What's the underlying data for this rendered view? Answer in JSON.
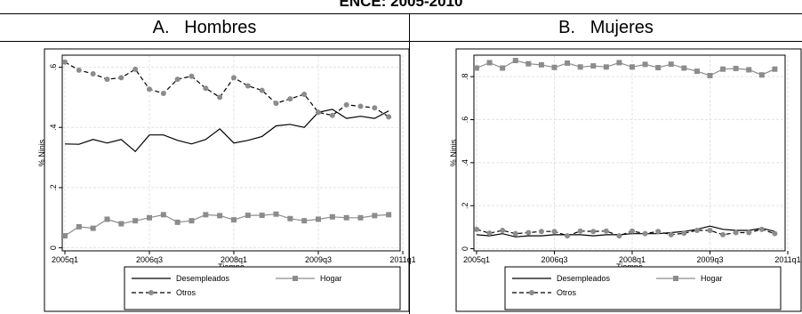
{
  "page": {
    "title": "ENCE: 2005-2010",
    "panels": [
      {
        "header_letter": "A.",
        "header_name": "Hombres"
      },
      {
        "header_letter": "B.",
        "header_name": "Mujeres"
      }
    ]
  },
  "chart_data": [
    {
      "type": "line",
      "panel": "A. Hombres",
      "xlabel": "Tiempo",
      "ylabel": "% Ninis",
      "x_ticks": [
        "2005q1",
        "2006q3",
        "2008q1",
        "2009q3",
        "2011q1"
      ],
      "y_ticks": [
        "0",
        ".2",
        ".4",
        ".6"
      ],
      "ylim": [
        -0.01,
        0.64
      ],
      "grid": true,
      "legend_position": "bottom",
      "categories": [
        "2005q1",
        "2005q2",
        "2005q3",
        "2005q4",
        "2006q1",
        "2006q2",
        "2006q3",
        "2006q4",
        "2007q1",
        "2007q2",
        "2007q3",
        "2007q4",
        "2008q1",
        "2008q2",
        "2008q3",
        "2008q4",
        "2009q1",
        "2009q2",
        "2009q3",
        "2009q4",
        "2010q1",
        "2010q2",
        "2010q3",
        "2010q4"
      ],
      "series": [
        {
          "name": "Desempleados",
          "style": "solid",
          "color": "#000000",
          "values": [
            0.345,
            0.344,
            0.36,
            0.348,
            0.36,
            0.32,
            0.375,
            0.375,
            0.357,
            0.345,
            0.36,
            0.395,
            0.348,
            0.357,
            0.37,
            0.405,
            0.41,
            0.4,
            0.45,
            0.46,
            0.43,
            0.437,
            0.43,
            0.455
          ]
        },
        {
          "name": "Hogar",
          "style": "solid",
          "color": "#8c8c8c",
          "marker": "square",
          "values": [
            0.04,
            0.07,
            0.065,
            0.095,
            0.08,
            0.09,
            0.1,
            0.11,
            0.085,
            0.09,
            0.11,
            0.107,
            0.093,
            0.108,
            0.108,
            0.112,
            0.097,
            0.09,
            0.095,
            0.103,
            0.1,
            0.1,
            0.107,
            0.11
          ]
        },
        {
          "name": "Otros",
          "style": "dashed",
          "color": "#000000",
          "marker": "circle",
          "values": [
            0.617,
            0.59,
            0.578,
            0.56,
            0.565,
            0.593,
            0.527,
            0.513,
            0.56,
            0.57,
            0.53,
            0.5,
            0.565,
            0.538,
            0.523,
            0.48,
            0.495,
            0.51,
            0.45,
            0.44,
            0.475,
            0.47,
            0.465,
            0.435
          ]
        }
      ]
    },
    {
      "type": "line",
      "panel": "B. Mujeres",
      "xlabel": "Tiempo",
      "ylabel": "% Ninis",
      "x_ticks": [
        "2005q1",
        "2006q3",
        "2008q1",
        "2009q3",
        "2011q1"
      ],
      "y_ticks": [
        "0",
        ".2",
        ".4",
        ".6",
        ".8"
      ],
      "ylim": [
        -0.01,
        0.9
      ],
      "grid": true,
      "legend_position": "bottom",
      "categories": [
        "2005q1",
        "2005q2",
        "2005q3",
        "2005q4",
        "2006q1",
        "2006q2",
        "2006q3",
        "2006q4",
        "2007q1",
        "2007q2",
        "2007q3",
        "2007q4",
        "2008q1",
        "2008q2",
        "2008q3",
        "2008q4",
        "2009q1",
        "2009q2",
        "2009q3",
        "2009q4",
        "2010q1",
        "2010q2",
        "2010q3",
        "2010q4"
      ],
      "series": [
        {
          "name": "Desempleados",
          "style": "solid",
          "color": "#000000",
          "values": [
            0.065,
            0.06,
            0.07,
            0.055,
            0.06,
            0.06,
            0.065,
            0.065,
            0.065,
            0.06,
            0.065,
            0.065,
            0.07,
            0.07,
            0.07,
            0.075,
            0.08,
            0.09,
            0.105,
            0.09,
            0.085,
            0.085,
            0.095,
            0.08
          ]
        },
        {
          "name": "Hogar",
          "style": "solid",
          "color": "#8c8c8c",
          "marker": "square",
          "values": [
            0.84,
            0.865,
            0.84,
            0.875,
            0.86,
            0.855,
            0.843,
            0.863,
            0.845,
            0.85,
            0.845,
            0.865,
            0.845,
            0.857,
            0.842,
            0.858,
            0.84,
            0.825,
            0.805,
            0.835,
            0.838,
            0.832,
            0.808,
            0.835
          ]
        },
        {
          "name": "Otros",
          "style": "dashed",
          "color": "#000000",
          "marker": "circle",
          "values": [
            0.09,
            0.072,
            0.085,
            0.07,
            0.075,
            0.08,
            0.08,
            0.06,
            0.082,
            0.08,
            0.082,
            0.06,
            0.082,
            0.07,
            0.08,
            0.065,
            0.072,
            0.085,
            0.085,
            0.065,
            0.075,
            0.075,
            0.09,
            0.07
          ]
        }
      ]
    }
  ]
}
